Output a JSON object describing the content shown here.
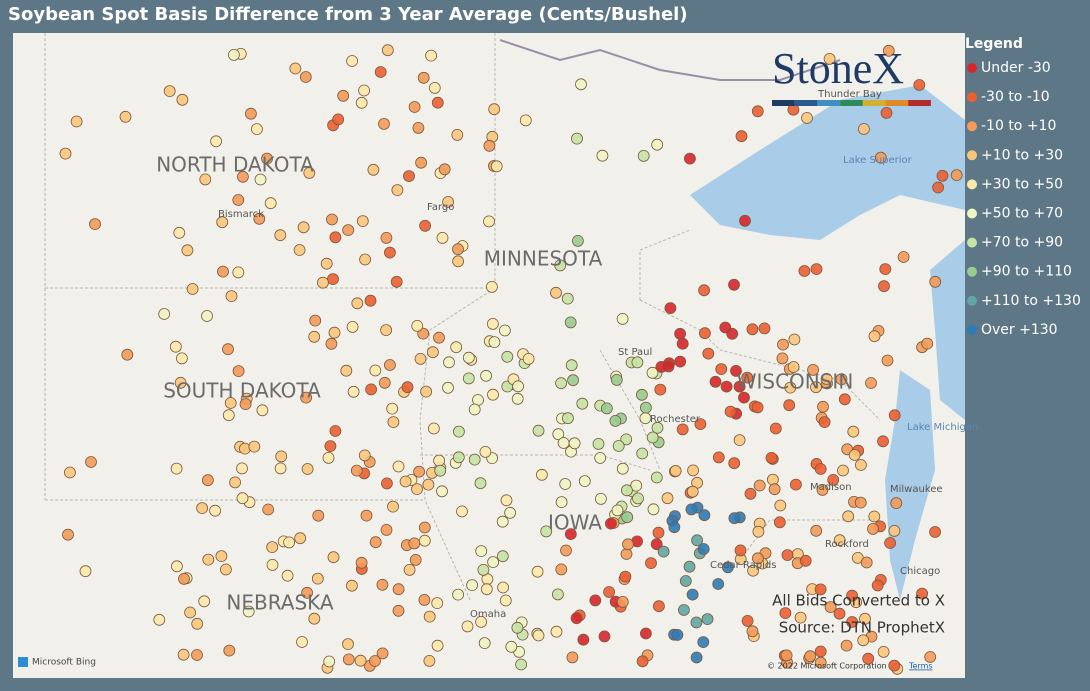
{
  "header": {
    "title": "Soybean Spot Basis Difference from 3 Year Average (Cents/Bushel)"
  },
  "logo": {
    "text": "StoneX"
  },
  "legend": {
    "title": "Legend",
    "items": [
      {
        "label": "Under -30",
        "color": "#d7262a"
      },
      {
        "label": "-30 to -10",
        "color": "#ec5f32"
      },
      {
        "label": "-10 to +10",
        "color": "#f39a58"
      },
      {
        "label": "+10 to +30",
        "color": "#f9c77c"
      },
      {
        "label": "+30 to +50",
        "color": "#fbe9ab"
      },
      {
        "label": "+50 to +70",
        "color": "#eef4c2"
      },
      {
        "label": "+70 to +90",
        "color": "#c5e3a4"
      },
      {
        "label": "+90 to +110",
        "color": "#98cb8f"
      },
      {
        "label": "+110 to +130",
        "color": "#62a6a4"
      },
      {
        "label": "Over +130",
        "color": "#2f7bb7"
      }
    ]
  },
  "map": {
    "states": [
      "NORTH DAKOTA",
      "MINNESOTA",
      "SOUTH DAKOTA",
      "WISCONSIN",
      "NEBRASKA",
      "IOWA"
    ],
    "places": [
      "Bismarck",
      "Fargo",
      "St Paul",
      "Rochester",
      "Madison",
      "Milwaukee",
      "Rockford",
      "Chicago",
      "Omaha",
      "Cedar Rapids",
      "Thunder Bay",
      "Lake Superior",
      "Lake Michigan"
    ],
    "notes": [
      "All Bids Converted to X",
      "Source: DTN ProphetX"
    ],
    "attribution": {
      "provider": "Microsoft Bing",
      "copyright": "© 2022 Microsoft Corporation",
      "terms": "Terms"
    }
  }
}
